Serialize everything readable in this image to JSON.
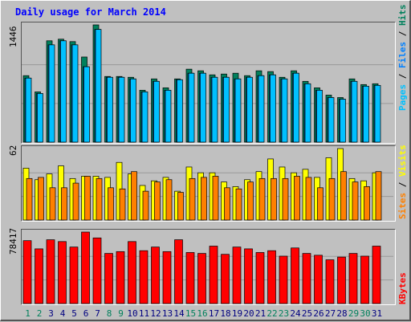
{
  "title": "Daily usage for March 2014",
  "colors": {
    "hits": "#00805c",
    "files": "#0080ff",
    "pages": "#00c0ff",
    "visits": "#ffff00",
    "sites": "#ff8000",
    "kbytes": "#ff0000",
    "weekend_label": "#00805c",
    "weekday_label": "#000080"
  },
  "y_max_labels": {
    "top": "1446",
    "middle": "62",
    "bottom": "78417"
  },
  "right_labels": {
    "hits": "Hits",
    "files": "Files",
    "pages": "Pages",
    "visits": "Visits",
    "sites": "Sites",
    "kbytes": "KBytes",
    "sep": " / "
  },
  "chart_data": {
    "type": "bar",
    "title": "Daily usage for March 2014",
    "categories": [
      "1",
      "2",
      "3",
      "4",
      "5",
      "6",
      "7",
      "8",
      "9",
      "10",
      "11",
      "12",
      "13",
      "14",
      "15",
      "16",
      "17",
      "18",
      "19",
      "20",
      "21",
      "22",
      "23",
      "24",
      "25",
      "26",
      "27",
      "28",
      "29",
      "30",
      "31"
    ],
    "weekend_days": [
      "1",
      "2",
      "8",
      "9",
      "15",
      "16",
      "22",
      "23",
      "29",
      "30"
    ],
    "panels": [
      {
        "ymax": 1446,
        "series": [
          {
            "name": "Hits",
            "values": [
              820,
              620,
              1250,
              1270,
              1240,
              1050,
              1446,
              810,
              810,
              800,
              640,
              780,
              670,
              780,
              900,
              880,
              830,
              840,
              850,
              820,
              880,
              870,
              800,
              880,
              750,
              670,
              580,
              550,
              780,
              710,
              720
            ]
          },
          {
            "name": "Files",
            "values": [
              790,
              600,
              1200,
              1250,
              1200,
              930,
              1390,
              800,
              800,
              780,
              620,
              750,
              640,
              770,
              850,
              850,
              800,
              800,
              780,
              800,
              820,
              830,
              780,
              850,
              720,
              640,
              550,
              530,
              750,
              690,
              700
            ]
          },
          {
            "name": "Pages",
            "values": [
              790,
              600,
              1200,
              1250,
              1200,
              930,
              1390,
              800,
              800,
              780,
              620,
              750,
              640,
              770,
              850,
              850,
              800,
              800,
              780,
              800,
              820,
              830,
              780,
              850,
              720,
              640,
              550,
              530,
              750,
              690,
              700
            ]
          }
        ]
      },
      {
        "ymax": 62,
        "series": [
          {
            "name": "Visits",
            "values": [
              45,
              35,
              40,
              47,
              36,
              38,
              38,
              37,
              50,
              40,
              30,
              34,
              37,
              25,
              46,
              41,
              41,
              33,
              29,
              35,
              42,
              53,
              46,
              41,
              44,
              37,
              54,
              62,
              36,
              34,
              41
            ]
          },
          {
            "name": "Sites",
            "values": [
              36,
              37,
              28,
              28,
              32,
              38,
              36,
              28,
              27,
              42,
              25,
              33,
              35,
              24,
              36,
              37,
              38,
              28,
              27,
              33,
              36,
              36,
              36,
              38,
              37,
              28,
              36,
              42,
              33,
              29,
              42
            ]
          }
        ]
      },
      {
        "ymax": 78417,
        "series": [
          {
            "name": "KBytes",
            "values": [
              69000,
              60000,
              70000,
              68000,
              62000,
              78417,
              72000,
              55000,
              57000,
              68000,
              58000,
              62000,
              57000,
              70000,
              56000,
              55000,
              63000,
              54000,
              62000,
              60000,
              56000,
              58000,
              52000,
              61000,
              55000,
              53000,
              48000,
              51000,
              55000,
              52000,
              63000
            ]
          }
        ]
      }
    ]
  }
}
